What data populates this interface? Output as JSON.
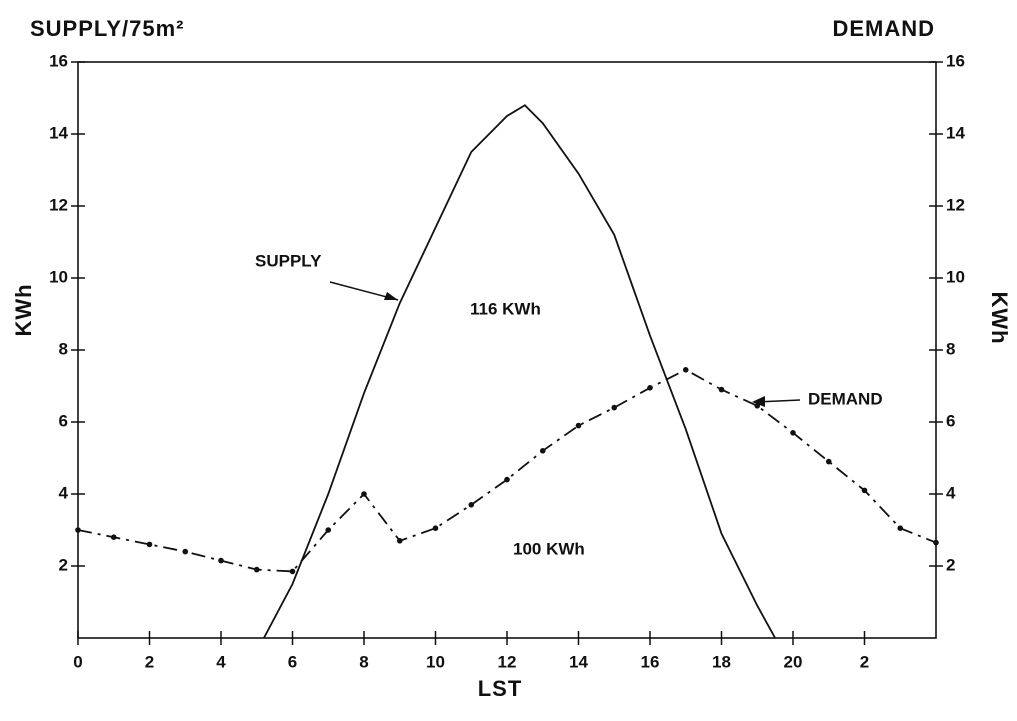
{
  "chart_data": {
    "type": "line",
    "title": "SUPPLY/75m²",
    "right_title": "DEMAND",
    "ylabel": "KWh",
    "y2label": "KWh",
    "xlabel": "LST",
    "annotations": [
      "116 KWh",
      "100 KWh"
    ],
    "xlim": [
      0,
      24
    ],
    "xticks": [
      0,
      2,
      4,
      6,
      8,
      10,
      12,
      14,
      16,
      18,
      20,
      {
        "value": 22,
        "label": "2"
      }
    ],
    "ylim": [
      0,
      16
    ],
    "yticks": [
      2,
      4,
      6,
      8,
      10,
      12,
      14,
      16
    ],
    "y2lim": [
      0,
      16
    ],
    "y2ticks": [
      2,
      4,
      6,
      8,
      10,
      12,
      14,
      16
    ],
    "grid": false,
    "series": [
      {
        "name": "SUPPLY",
        "color": "#111111",
        "x": [
          5.2,
          6,
          7,
          8,
          9,
          10,
          11,
          12,
          12.5,
          13,
          14,
          15,
          16,
          17,
          18,
          19,
          19.5
        ],
        "values": [
          0,
          1.5,
          4,
          6.8,
          9.3,
          11.4,
          13.5,
          14.5,
          14.8,
          14.3,
          12.9,
          11.2,
          8.4,
          5.8,
          2.9,
          0.9,
          0
        ]
      },
      {
        "name": "DEMAND",
        "color": "#111111",
        "axis": "y2",
        "x": [
          0,
          1,
          2,
          3,
          4,
          5,
          6,
          7,
          8,
          9,
          10,
          11,
          12,
          13,
          14,
          15,
          16,
          17,
          18,
          19,
          20,
          21,
          22,
          23,
          24
        ],
        "values": [
          3.0,
          2.8,
          2.6,
          2.4,
          2.15,
          1.9,
          1.85,
          3.0,
          4.0,
          2.7,
          3.05,
          3.7,
          4.4,
          5.2,
          5.9,
          6.4,
          6.95,
          7.45,
          6.9,
          6.45,
          5.7,
          4.9,
          4.1,
          3.05,
          2.65
        ]
      }
    ]
  }
}
